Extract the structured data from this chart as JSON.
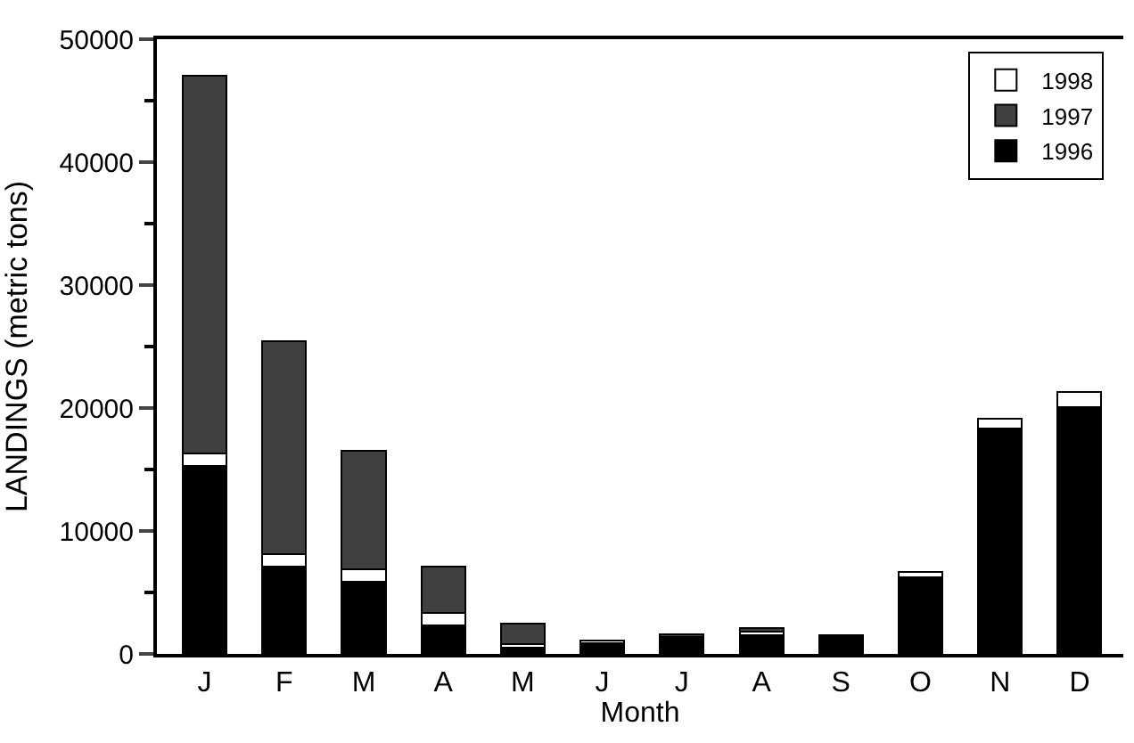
{
  "chart_data": {
    "type": "bar",
    "stacked": true,
    "xlabel": "Month",
    "ylabel": "LANDINGS (metric tons)",
    "categories": [
      "J",
      "F",
      "M",
      "A",
      "M",
      "J",
      "J",
      "A",
      "S",
      "O",
      "N",
      "D"
    ],
    "series": [
      {
        "name": "1996",
        "color": "#000000",
        "values": [
          15300,
          7100,
          5900,
          2300,
          500,
          900,
          1300,
          1500,
          1500,
          6200,
          18300,
          20100
        ]
      },
      {
        "name": "1998",
        "color": "#ffffff",
        "values": [
          1000,
          1000,
          1000,
          1000,
          300,
          200,
          100,
          300,
          null,
          500,
          800,
          1200
        ]
      },
      {
        "name": "1997",
        "color": "#404040",
        "values": [
          30700,
          17300,
          9600,
          3800,
          1700,
          null,
          200,
          300,
          null,
          null,
          null,
          null
        ]
      }
    ],
    "ylim": [
      0,
      50000
    ],
    "yticks": [
      0,
      10000,
      20000,
      30000,
      40000,
      50000
    ],
    "legend": "top right"
  }
}
